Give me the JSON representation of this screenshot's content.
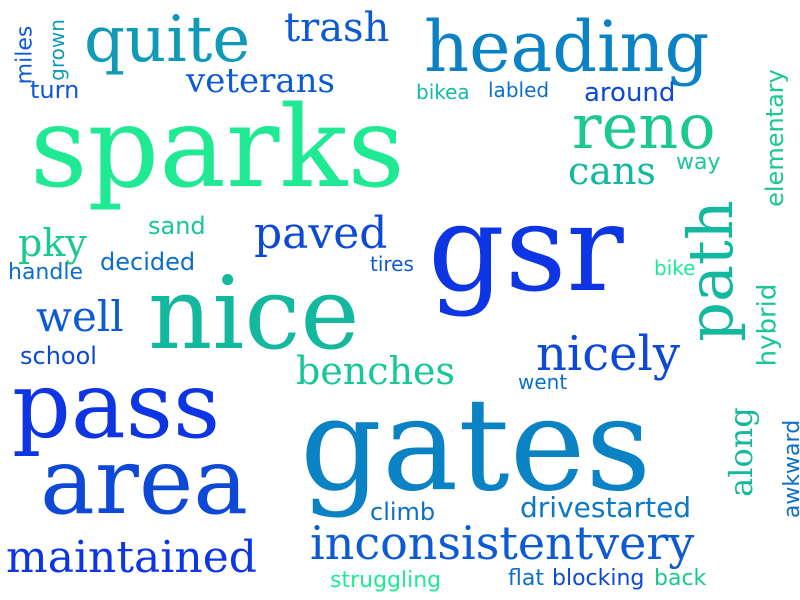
{
  "cloud": {
    "words": [
      {
        "text": "sparks",
        "color": "#1fea93"
      },
      {
        "text": "gsr",
        "color": "#0d35e3"
      },
      {
        "text": "gates",
        "color": "#0a82c4"
      },
      {
        "text": "pass",
        "color": "#0d35e3"
      },
      {
        "text": "area",
        "color": "#0d49d4"
      },
      {
        "text": "nice",
        "color": "#14b89e"
      },
      {
        "text": "heading",
        "color": "#0a82c4"
      },
      {
        "text": "quite",
        "color": "#0f9bb7"
      },
      {
        "text": "reno",
        "color": "#1ac98b"
      },
      {
        "text": "path",
        "color": "#14b89e"
      },
      {
        "text": "inconsistentvery",
        "color": "#0d5ad3"
      },
      {
        "text": "maintained",
        "color": "#0d35e3"
      },
      {
        "text": "nicely",
        "color": "#0d49d4"
      },
      {
        "text": "paved",
        "color": "#0d49d4"
      },
      {
        "text": "benches",
        "color": "#17c79a"
      },
      {
        "text": "well",
        "color": "#0d5ad3"
      },
      {
        "text": "veterans",
        "color": "#0d5ad3"
      },
      {
        "text": "trash",
        "color": "#0d5ad3"
      },
      {
        "text": "cans",
        "color": "#14b89e"
      },
      {
        "text": "pky",
        "color": "#1ac98b"
      },
      {
        "text": "along",
        "color": "#14b89e"
      },
      {
        "text": "drivestarted",
        "color": "#0d78c4"
      },
      {
        "text": "around",
        "color": "#0d49d4"
      },
      {
        "text": "turn",
        "color": "#0d5ad3"
      },
      {
        "text": "climb",
        "color": "#0d6fc9"
      },
      {
        "text": "school",
        "color": "#0d49d4"
      },
      {
        "text": "decided",
        "color": "#0d6fc9"
      },
      {
        "text": "sand",
        "color": "#17c79a"
      },
      {
        "text": "handle",
        "color": "#0d6fc9"
      },
      {
        "text": "bikea",
        "color": "#16b8a8"
      },
      {
        "text": "labled",
        "color": "#0d6fc9"
      },
      {
        "text": "way",
        "color": "#17c79a"
      },
      {
        "text": "tires",
        "color": "#0d5ad3"
      },
      {
        "text": "went",
        "color": "#0d6fc9"
      },
      {
        "text": "bike",
        "color": "#1fea93"
      },
      {
        "text": "hybrid",
        "color": "#17c79a"
      },
      {
        "text": "elementary",
        "color": "#1ac98b"
      },
      {
        "text": "awkward",
        "color": "#0d6fc9"
      },
      {
        "text": "miles",
        "color": "#0d5ad3"
      },
      {
        "text": "grown",
        "color": "#0f9bb7"
      },
      {
        "text": "struggling",
        "color": "#1fea93"
      },
      {
        "text": "flat",
        "color": "#0d6fc9"
      },
      {
        "text": "blocking",
        "color": "#0d49d4"
      },
      {
        "text": "back",
        "color": "#1ac98b"
      }
    ]
  },
  "colors": {
    "background": "#ffffff"
  }
}
